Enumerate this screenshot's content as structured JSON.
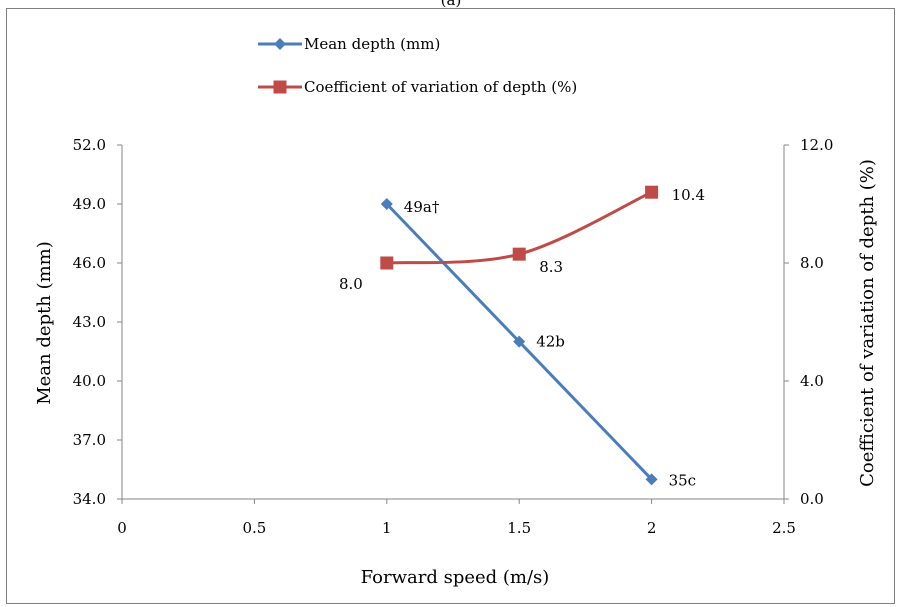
{
  "panel_label": "(a)",
  "chart_data": {
    "type": "line",
    "title": "",
    "xlabel": "Forward speed  (m/s)",
    "ylabel_left": "Mean depth (mm)",
    "ylabel_right": "Coefficient of variation of depth  (%)",
    "xlim": [
      0,
      2.5
    ],
    "xticks": [
      "0",
      "0.5",
      "1",
      "1.5",
      "2",
      "2.5"
    ],
    "ylim_left": [
      34.0,
      52.0
    ],
    "yticks_left": [
      "34.0",
      "37.0",
      "40.0",
      "43.0",
      "46.0",
      "49.0",
      "52.0"
    ],
    "ylim_right": [
      0.0,
      12.0
    ],
    "yticks_right": [
      "0.0",
      "4.0",
      "8.0",
      "12.0"
    ],
    "grid": false,
    "legend_position": "top",
    "series": [
      {
        "name": "Mean depth (mm)",
        "axis": "left",
        "color": "#4a7ebb",
        "marker": "diamond",
        "x": [
          1,
          1.5,
          2
        ],
        "y": [
          49,
          42,
          35
        ],
        "labels": [
          "49a†",
          "42b",
          "35c"
        ]
      },
      {
        "name": "Coefficient of variation of depth (%)",
        "axis": "right",
        "color": "#be4b48",
        "marker": "square",
        "x": [
          1,
          1.5,
          2
        ],
        "y": [
          8.0,
          8.3,
          10.4
        ],
        "labels": [
          "8.0",
          "8.3",
          "10.4"
        ]
      }
    ]
  }
}
